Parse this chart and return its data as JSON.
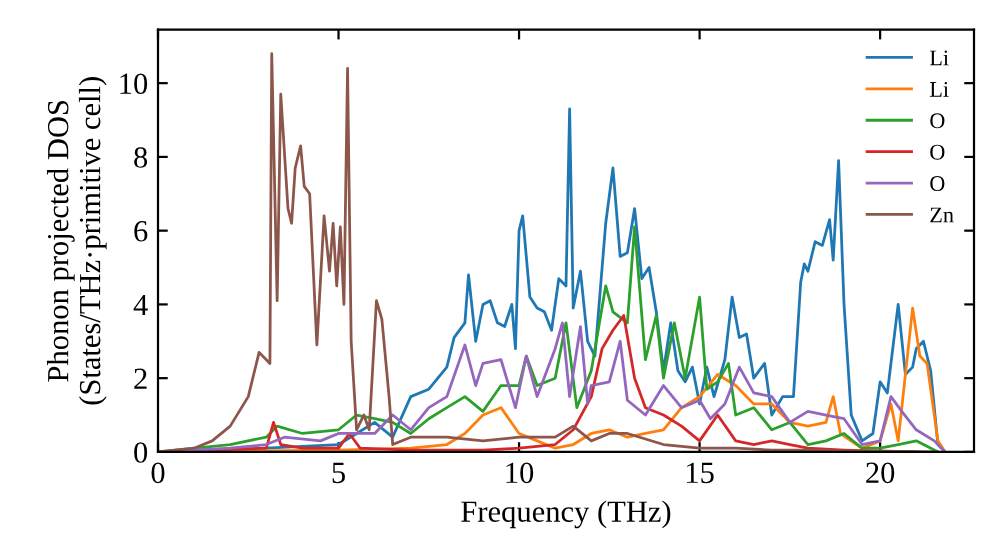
{
  "chart_data": {
    "type": "line",
    "xlabel": "Frequency (THz)",
    "ylabel": "Phonon projected DOS\n(States/THz·primitive cell)",
    "xlim": [
      0,
      22.6
    ],
    "ylim": [
      0,
      11.45
    ],
    "xticks": [
      0,
      5,
      10,
      15,
      20
    ],
    "yticks": [
      0,
      2,
      4,
      6,
      8,
      10
    ],
    "grid": false,
    "legend": "top right",
    "marker": "none",
    "line_style": "solid",
    "series": [
      {
        "name": "Li",
        "color": "#1f77b4",
        "x": [
          0,
          3,
          5,
          5.5,
          6,
          6.5,
          7,
          7.5,
          8,
          8.2,
          8.5,
          8.6,
          8.8,
          9,
          9.2,
          9.4,
          9.6,
          9.8,
          9.9,
          10,
          10.1,
          10.3,
          10.5,
          10.7,
          10.9,
          11.1,
          11.3,
          11.4,
          11.5,
          11.7,
          11.9,
          12.1,
          12.4,
          12.6,
          12.8,
          13,
          13.2,
          13.4,
          13.6,
          13.8,
          14,
          14.2,
          14.4,
          14.6,
          14.8,
          15,
          15.2,
          15.4,
          15.7,
          15.9,
          16.1,
          16.3,
          16.5,
          16.8,
          17,
          17.3,
          17.6,
          17.8,
          17.9,
          18,
          18.2,
          18.4,
          18.6,
          18.7,
          18.85,
          19,
          19.2,
          19.5,
          19.8,
          20,
          20.2,
          20.5,
          20.7,
          20.9,
          21,
          21.2,
          21.4,
          21.6,
          21.8
        ],
        "values": [
          0,
          0.1,
          0.2,
          0.5,
          0.8,
          0.4,
          1.5,
          1.7,
          2.3,
          3.1,
          3.5,
          4.8,
          3,
          4,
          4.1,
          3.5,
          3.4,
          4,
          2.8,
          6,
          6.4,
          4.2,
          3.9,
          3.8,
          3.3,
          4.7,
          4.5,
          9.3,
          3.9,
          4.9,
          3,
          2.6,
          6.2,
          7.7,
          5.3,
          5.4,
          6.6,
          4.7,
          5,
          3.8,
          2.2,
          3.5,
          2.2,
          1.9,
          2.3,
          1.3,
          2.3,
          1.5,
          2.5,
          4.2,
          3.1,
          3.2,
          2,
          2.4,
          1,
          1.5,
          1.5,
          4.6,
          5.1,
          4.9,
          5.7,
          5.6,
          6.3,
          5.2,
          7.9,
          4,
          1,
          0.3,
          0.5,
          1.9,
          1.6,
          4,
          2.1,
          2.3,
          2.8,
          3,
          2.2,
          0.2,
          0
        ]
      },
      {
        "name": "Li",
        "color": "#ff7f0e",
        "x": [
          0,
          5,
          7,
          8,
          8.5,
          9,
          9.5,
          10,
          10.5,
          11,
          11.5,
          12,
          12.5,
          13,
          13.5,
          14,
          14.5,
          15,
          15.5,
          16,
          16.5,
          17,
          17.5,
          18,
          18.5,
          18.7,
          18.9,
          19.5,
          20,
          20.3,
          20.5,
          20.9,
          21.1,
          21.3,
          21.6,
          21.8
        ],
        "values": [
          0,
          0.05,
          0.1,
          0.2,
          0.5,
          1,
          1.2,
          0.5,
          0.3,
          0.1,
          0.2,
          0.5,
          0.6,
          0.4,
          0.5,
          0.6,
          1.2,
          1.5,
          2.1,
          1.8,
          1.3,
          1.3,
          0.8,
          0.7,
          0.8,
          1.5,
          0.5,
          0.1,
          0.3,
          1.3,
          0.3,
          3.9,
          2.6,
          2.4,
          0.3,
          0
        ]
      },
      {
        "name": "O",
        "color": "#2ca02c",
        "x": [
          0,
          2,
          3,
          3.3,
          4,
          5,
          5.5,
          6,
          6.5,
          7,
          7.5,
          8,
          8.5,
          9,
          9.5,
          10,
          10.2,
          10.5,
          11,
          11.3,
          11.6,
          12,
          12.4,
          12.6,
          13,
          13.2,
          13.5,
          13.8,
          14,
          14.3,
          14.6,
          15,
          15.2,
          15.5,
          15.8,
          16,
          16.5,
          17,
          17.5,
          18,
          18.5,
          19,
          19.5,
          20,
          20.5,
          21,
          21.6
        ],
        "values": [
          0,
          0.2,
          0.4,
          0.7,
          0.5,
          0.6,
          1,
          0.9,
          0.8,
          0.5,
          0.9,
          1.2,
          1.5,
          1.1,
          1.8,
          1.8,
          2.6,
          1.8,
          2,
          3.5,
          1.2,
          2.2,
          4.5,
          3.8,
          3.5,
          6.1,
          2.5,
          3.7,
          2,
          3.5,
          2,
          4.2,
          1.7,
          1.9,
          2.4,
          1,
          1.2,
          0.6,
          0.8,
          0.2,
          0.3,
          0.5,
          0.1,
          0.1,
          0.2,
          0.3,
          0
        ]
      },
      {
        "name": "O",
        "color": "#d62728",
        "x": [
          0,
          3,
          3.2,
          3.4,
          4,
          5,
          5.3,
          5.6,
          7,
          9,
          10,
          11,
          11.5,
          12,
          12.3,
          12.6,
          12.9,
          13.2,
          13.5,
          14,
          14.5,
          15,
          15.5,
          16,
          16.5,
          17,
          17.5,
          18,
          19,
          20,
          21
        ],
        "values": [
          0,
          0.1,
          0.8,
          0.2,
          0.1,
          0.1,
          0.5,
          0.1,
          0.05,
          0.05,
          0.1,
          0.2,
          0.6,
          1.5,
          2.8,
          3.3,
          3.7,
          2,
          1.2,
          1,
          0.7,
          0.3,
          1,
          0.3,
          0.2,
          0.3,
          0.2,
          0.1,
          0.05,
          0.02,
          0
        ]
      },
      {
        "name": "O",
        "color": "#9467bd",
        "x": [
          0,
          2,
          3,
          3.5,
          4.5,
          5,
          6,
          6.5,
          7,
          7.5,
          8,
          8.5,
          8.8,
          9,
          9.5,
          9.9,
          10.2,
          10.5,
          11,
          11.2,
          11.4,
          11.7,
          11.9,
          12,
          12.5,
          12.8,
          13,
          13.5,
          14,
          14.5,
          15,
          15.3,
          15.7,
          16.1,
          16.5,
          17,
          17.5,
          18,
          18.5,
          19,
          19.5,
          20,
          20.3,
          20.6,
          21,
          21.5,
          21.8
        ],
        "values": [
          0,
          0.1,
          0.2,
          0.4,
          0.3,
          0.5,
          0.5,
          1,
          0.6,
          1.2,
          1.5,
          2.9,
          1.8,
          2.4,
          2.5,
          1.2,
          2.6,
          1.5,
          2.8,
          3.5,
          1.5,
          3.4,
          1.3,
          1.8,
          1.9,
          3,
          1.4,
          1,
          1.8,
          1.2,
          1.4,
          0.9,
          1.3,
          2.3,
          1.6,
          1.5,
          0.8,
          1.1,
          1,
          0.9,
          0.2,
          0.3,
          1.5,
          1.1,
          0.6,
          0.3,
          0
        ]
      },
      {
        "name": "Zn",
        "color": "#8c564b",
        "x": [
          0,
          1,
          1.5,
          2,
          2.5,
          2.8,
          3,
          3.1,
          3.15,
          3.3,
          3.4,
          3.6,
          3.7,
          3.8,
          3.95,
          4.05,
          4.2,
          4.4,
          4.6,
          4.75,
          4.85,
          4.95,
          5.05,
          5.15,
          5.25,
          5.35,
          5.5,
          5.7,
          5.85,
          6.05,
          6.2,
          6.4,
          6.5,
          7,
          8,
          9,
          10,
          11,
          11.5,
          12,
          12.5,
          13,
          14,
          15,
          16,
          17,
          18,
          19,
          20,
          21,
          21.6
        ],
        "values": [
          0,
          0.1,
          0.3,
          0.7,
          1.5,
          2.7,
          2.5,
          2.4,
          10.8,
          4.1,
          9.7,
          6.6,
          6.2,
          7.7,
          8.3,
          7.2,
          7,
          2.9,
          6.4,
          4.9,
          6.2,
          4.5,
          6.1,
          4,
          10.4,
          3,
          0.6,
          1,
          0.6,
          4.1,
          3.6,
          1.5,
          0.2,
          0.4,
          0.4,
          0.3,
          0.4,
          0.4,
          0.7,
          0.3,
          0.5,
          0.5,
          0.2,
          0.1,
          0.1,
          0.05,
          0.05,
          0.02,
          0.02,
          0.01,
          0
        ]
      }
    ]
  }
}
